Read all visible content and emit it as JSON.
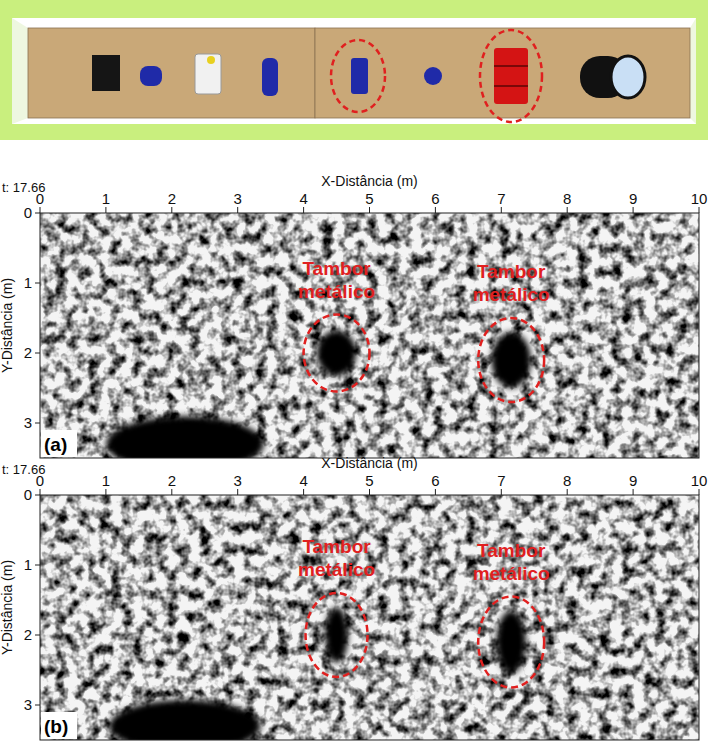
{
  "chart_data": [
    {
      "type": "gpr_slice",
      "panel_label": "(a)",
      "time_label": "t: 17.66",
      "x_label": "X-Distância (m)",
      "y_label": "Y-Distância (m)",
      "xlim": [
        0,
        10
      ],
      "ylim": [
        0,
        3.5
      ],
      "xticks": [
        0,
        1,
        2,
        3,
        4,
        5,
        6,
        7,
        8,
        9,
        10
      ],
      "yticks": [
        0,
        1,
        2,
        3
      ],
      "anomalies": [
        {
          "x": 4.5,
          "y": 2.0,
          "width": 0.6,
          "height": 0.65
        },
        {
          "x": 7.15,
          "y": 2.1,
          "width": 0.6,
          "height": 0.8
        },
        {
          "x": 2.2,
          "y": 3.3,
          "width": 2.4,
          "height": 0.8
        }
      ],
      "annotations": [
        {
          "text": "Tambor metálico",
          "x": 4.5,
          "y": 2.0,
          "rx": 0.5,
          "ry": 0.55
        },
        {
          "text": "Tambor metálico",
          "x": 7.15,
          "y": 2.1,
          "rx": 0.5,
          "ry": 0.6
        }
      ]
    },
    {
      "type": "gpr_slice",
      "panel_label": "(b)",
      "time_label": "t: 17.66",
      "x_label": "X-Distância (m)",
      "y_label": "Y-Distância (m)",
      "xlim": [
        0,
        10
      ],
      "ylim": [
        0,
        3.5
      ],
      "xticks": [
        0,
        1,
        2,
        3,
        4,
        5,
        6,
        7,
        8,
        9,
        10
      ],
      "yticks": [
        0,
        1,
        2,
        3
      ],
      "anomalies": [
        {
          "x": 4.5,
          "y": 2.0,
          "width": 0.35,
          "height": 0.8
        },
        {
          "x": 7.15,
          "y": 2.1,
          "width": 0.45,
          "height": 0.9
        },
        {
          "x": 2.2,
          "y": 3.3,
          "width": 2.3,
          "height": 0.75
        }
      ],
      "annotations": [
        {
          "text": "Tambor metálico",
          "x": 4.5,
          "y": 2.0,
          "rx": 0.47,
          "ry": 0.6
        },
        {
          "text": "Tambor metálico",
          "x": 7.15,
          "y": 2.1,
          "rx": 0.5,
          "ry": 0.65
        }
      ]
    }
  ]
}
